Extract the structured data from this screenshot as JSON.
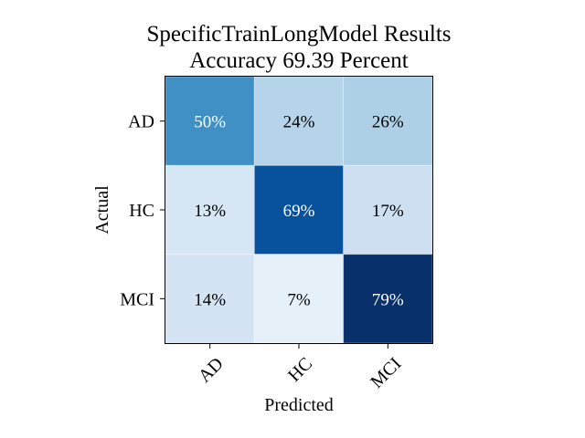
{
  "chart_data": {
    "type": "heatmap",
    "title": "SpecificTrainLongModel Results",
    "subtitle": "Accuracy 69.39 Percent",
    "xlabel": "Predicted",
    "ylabel": "Actual",
    "x_categories": [
      "AD",
      "HC",
      "MCI"
    ],
    "y_categories": [
      "AD",
      "HC",
      "MCI"
    ],
    "values": [
      [
        50,
        24,
        26
      ],
      [
        13,
        69,
        17
      ],
      [
        14,
        7,
        79
      ]
    ],
    "cell_labels": [
      [
        "50%",
        "24%",
        "26%"
      ],
      [
        "13%",
        "69%",
        "17%"
      ],
      [
        "14%",
        "7%",
        "79%"
      ]
    ],
    "value_range": [
      0,
      79
    ],
    "colormap": "Blues",
    "colormap_stops": [
      "#f7fbff",
      "#deebf7",
      "#c6dbef",
      "#9ecae1",
      "#6baed6",
      "#4292c6",
      "#2171b5",
      "#08519c",
      "#08306b"
    ],
    "grid": false,
    "legend": "none"
  }
}
